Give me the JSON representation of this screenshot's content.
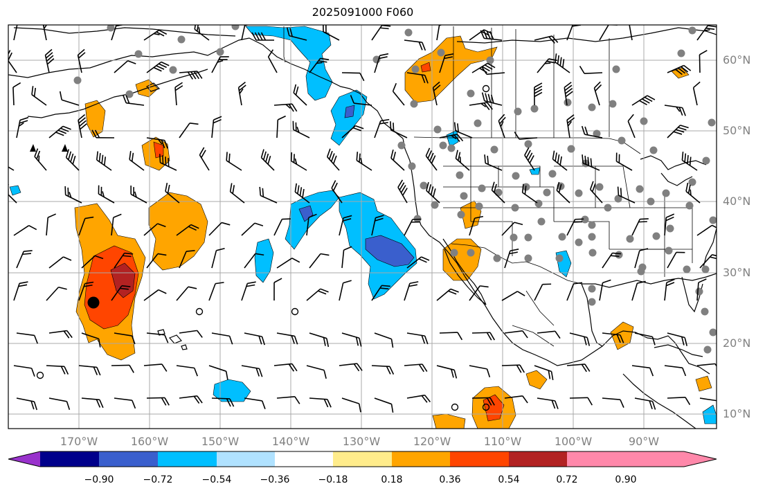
{
  "title": "2025091000 F060",
  "lon_labels": [
    "170°W",
    "160°W",
    "150°W",
    "140°W",
    "130°W",
    "120°W",
    "110°W",
    "100°W",
    "90°W"
  ],
  "lat_labels": [
    "60°N",
    "50°N",
    "40°N",
    "30°N",
    "20°N",
    "10°N"
  ],
  "colorbar": {
    "colors": [
      "#9932cc",
      "#00008b",
      "#3a5fcd",
      "#00bfff",
      "#b0e2ff",
      "#ffffff",
      "#ffec8b",
      "#ffa500",
      "#ff4500",
      "#b22222",
      "#ff88aa"
    ],
    "labels": [
      "−0.90",
      "−0.72",
      "−0.54",
      "−0.36",
      "−0.18",
      "0.18",
      "0.36",
      "0.54",
      "0.72",
      "0.90"
    ]
  },
  "anomaly_colors": {
    "pos_weak": "#ffa500",
    "pos_mid": "#ff4500",
    "pos_strong": "#b22222",
    "pos_pale": "#ffec8b",
    "neg_weak": "#00bfff",
    "neg_mid": "#3a5fcd",
    "neg_pale": "#b0e2ff"
  },
  "station_color": "#808080"
}
